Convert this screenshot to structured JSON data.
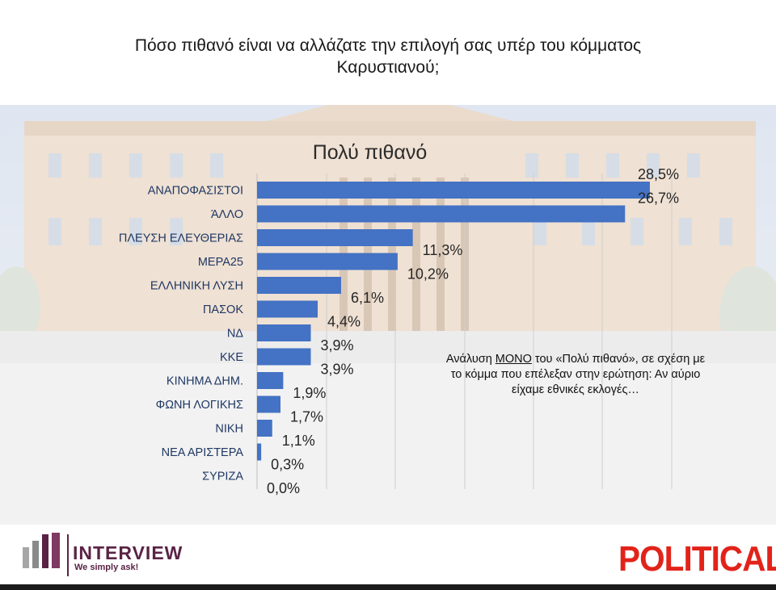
{
  "header": {
    "title_line1": "Πόσο πιθανό είναι να αλλάζατε την επιλογή σας υπέρ του κόμματος",
    "title_line2": "Καρυστιανού;"
  },
  "chart_data": {
    "type": "bar",
    "orientation": "horizontal",
    "title": "Πολύ πιθανό",
    "categories": [
      "ΑΝΑΠΟΦΑΣΙΣΤΟΙ",
      "ΆΛΛΟ",
      "ΠΛΕΥΣΗ ΕΛΕΥΘΕΡΙΑΣ",
      "ΜΕΡΑ25",
      "ΕΛΛΗΝΙΚΗ ΛΥΣΗ",
      "ΠΑΣΟΚ",
      "ΝΔ",
      "ΚΚΕ",
      "ΚΙΝΗΜΑ ΔΗΜ.",
      "ΦΩΝΗ ΛΟΓΙΚΗΣ",
      "ΝΙΚΗ",
      "ΝΕΑ ΑΡΙΣΤΕΡΑ",
      "ΣΥΡΙΖΑ"
    ],
    "values": [
      28.5,
      26.7,
      11.3,
      10.2,
      6.1,
      4.4,
      3.9,
      3.9,
      1.9,
      1.7,
      1.1,
      0.3,
      0.0
    ],
    "value_labels": [
      "28,5%",
      "26,7%",
      "11,3%",
      "10,2%",
      "6,1%",
      "4,4%",
      "3,9%",
      "3,9%",
      "1,9%",
      "1,7%",
      "1,1%",
      "0,3%",
      "0,0%"
    ],
    "bar_color": "#4472c4",
    "grid": true
  },
  "note": {
    "prefix": "Ανάλυση ",
    "emphasis": "ΜΟΝΟ",
    "rest_line1": " του «Πολύ πιθανό», σε σχέση με",
    "line2": "το κόμμα που επέλεξαν στην ερώτηση: Αν αύριο",
    "line3": "είχαμε εθνικές εκλογές…"
  },
  "logos": {
    "left_brand": "INTERVIEW",
    "left_tagline": "We simply ask!",
    "right_brand": "POLITICAL"
  },
  "colors": {
    "interview_purple": "#5a2345",
    "political_red": "#e2231a"
  }
}
